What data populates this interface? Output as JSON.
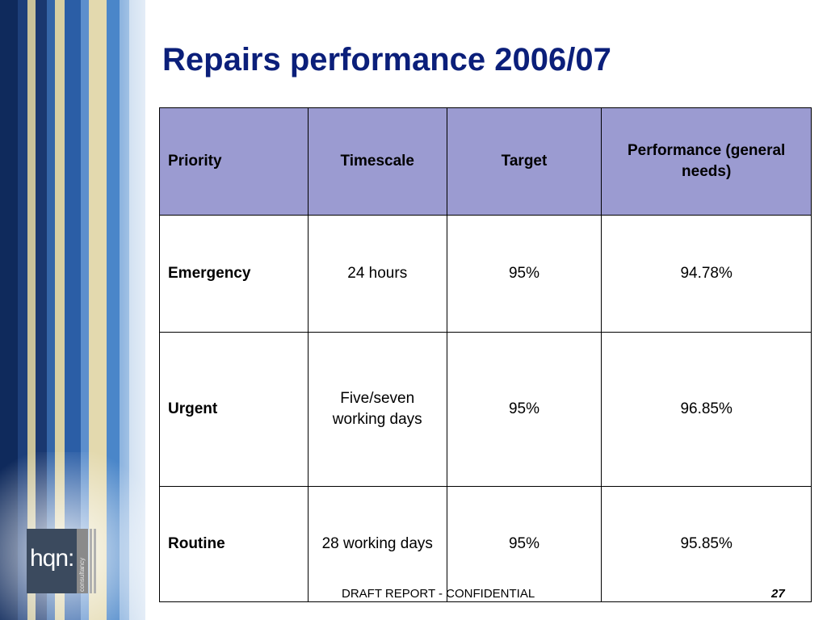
{
  "title": "Repairs performance 2006/07",
  "table": {
    "headers": [
      "Priority",
      "Timescale",
      "Target",
      "Performance (general needs)"
    ],
    "rows": [
      {
        "priority": "Emergency",
        "timescale": "24 hours",
        "target": "95%",
        "performance": "94.78%"
      },
      {
        "priority": "Urgent",
        "timescale": "Five/seven working days",
        "target": "95%",
        "performance": "96.85%"
      },
      {
        "priority": "Routine",
        "timescale": "28 working days",
        "target": "95%",
        "performance": "95.85%"
      }
    ]
  },
  "footer": {
    "label": "DRAFT REPORT - CONFIDENTIAL",
    "page_number": "27"
  },
  "logo": {
    "text": "hqn:",
    "subtext": "consultancy"
  },
  "colors": {
    "title": "#0b1f7a",
    "header_bg": "#9b9bd1"
  }
}
